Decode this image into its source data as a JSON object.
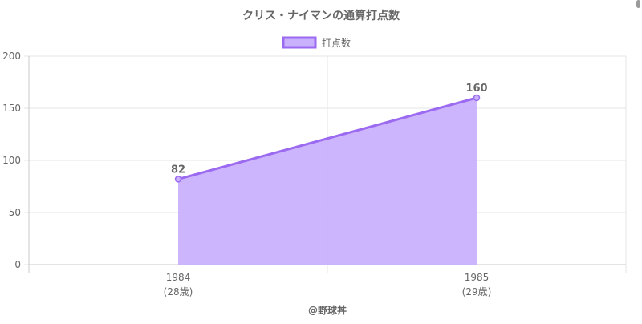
{
  "chart_data": {
    "type": "area",
    "title": "クリス・ナイマンの通算打点数",
    "categories": [
      "1984",
      "1985"
    ],
    "category_sublabels": [
      "(28歳)",
      "(29歳)"
    ],
    "series": [
      {
        "name": "打点数",
        "values": [
          82,
          160
        ],
        "data_labels": [
          "82",
          "160"
        ]
      }
    ],
    "ylim": [
      0,
      200
    ],
    "y_ticks": [
      "0",
      "50",
      "100",
      "150",
      "200"
    ],
    "grid": true,
    "legend_position": "top",
    "footer": "@野球丼",
    "colors": {
      "line": "#9b6af0",
      "fill": "#c9b1fc",
      "grid": "#e6e6e6",
      "axis": "#c8c8c8",
      "text": "#666666"
    }
  }
}
